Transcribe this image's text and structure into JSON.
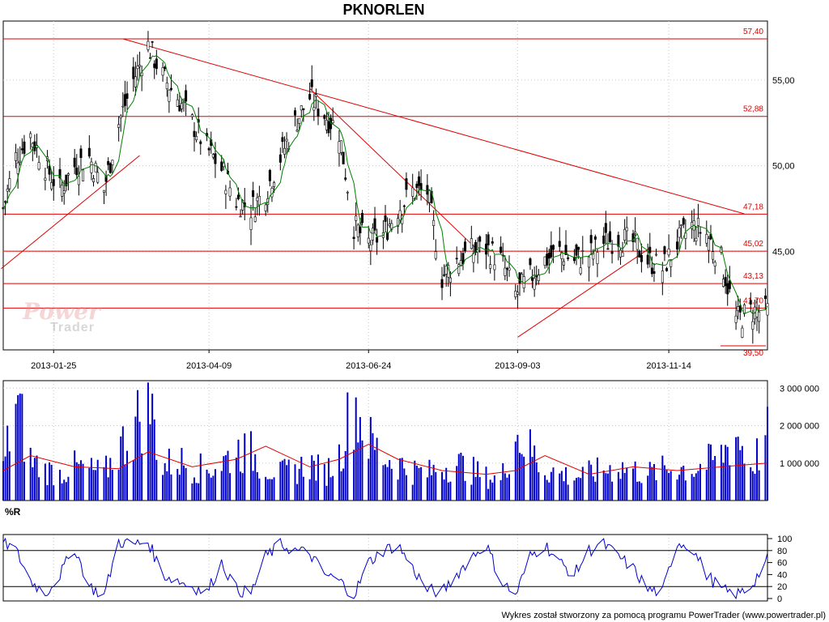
{
  "title": "PKNORLEN",
  "watermark": {
    "brand_top": "Power",
    "brand_bottom": "Trader"
  },
  "footer": "Wykres został stworzony za pomocą programu PowerTrader (www.powertrader.pl)",
  "colors": {
    "candle": "#000000",
    "sma": "#008000",
    "support_resistance": "#e00000",
    "volume_bar": "#0000cc",
    "volume_avg": "#e00000",
    "williams_r": "#0000cc",
    "grid": "#c8c8c8"
  },
  "chart_data": [
    {
      "type": "candlestick",
      "title": "PKNORLEN",
      "x_tick_labels": [
        "2013-01-25",
        "2013-04-09",
        "2013-06-24",
        "2013-09-03",
        "2013-11-14"
      ],
      "y_tick_labels": [
        "45,00",
        "50,00",
        "55,00"
      ],
      "ylim": [
        39.5,
        57.4
      ],
      "grid": true,
      "level_labels": [
        "57,40",
        "52,88",
        "47,18",
        "45,02",
        "43,13",
        "41,70",
        "39,50"
      ],
      "levels": [
        57.4,
        52.88,
        47.18,
        45.02,
        43.13,
        41.7,
        39.5
      ],
      "trendlines": [
        {
          "points": [
            [
              "2012-12-31",
              44.0
            ],
            [
              "2013-03-07",
              50.6
            ]
          ]
        },
        {
          "points": [
            [
              "2013-02-27",
              57.4
            ],
            [
              "2013-12-20",
              47.2
            ]
          ]
        },
        {
          "points": [
            [
              "2013-05-27",
              54.5
            ],
            [
              "2013-08-14",
              45.2
            ]
          ]
        },
        {
          "points": [
            [
              "2013-09-03",
              40.0
            ],
            [
              "2013-11-05",
              45.2
            ]
          ]
        }
      ],
      "price_path": [
        [
          "2013-01-01",
          47.5
        ],
        [
          "2013-01-07",
          50.5
        ],
        [
          "2013-01-14",
          51.8
        ],
        [
          "2013-01-21",
          50.0
        ],
        [
          "2013-01-28",
          48.6
        ],
        [
          "2013-02-04",
          50.0
        ],
        [
          "2013-02-11",
          50.5
        ],
        [
          "2013-02-18",
          48.6
        ],
        [
          "2013-02-25",
          52.5
        ],
        [
          "2013-03-04",
          55.0
        ],
        [
          "2013-03-11",
          57.0
        ],
        [
          "2013-03-18",
          55.2
        ],
        [
          "2013-03-25",
          54.0
        ],
        [
          "2013-04-01",
          52.5
        ],
        [
          "2013-04-08",
          51.0
        ],
        [
          "2013-04-15",
          49.8
        ],
        [
          "2013-04-22",
          48.0
        ],
        [
          "2013-04-29",
          47.5
        ],
        [
          "2013-05-06",
          48.5
        ],
        [
          "2013-05-13",
          50.5
        ],
        [
          "2013-05-20",
          52.5
        ],
        [
          "2013-05-27",
          54.0
        ],
        [
          "2013-06-03",
          53.0
        ],
        [
          "2013-06-10",
          52.0
        ],
        [
          "2013-06-17",
          46.5
        ],
        [
          "2013-06-24",
          45.5
        ],
        [
          "2013-07-01",
          46.0
        ],
        [
          "2013-07-08",
          47.5
        ],
        [
          "2013-07-15",
          48.5
        ],
        [
          "2013-07-22",
          48.5
        ],
        [
          "2013-07-29",
          43.5
        ],
        [
          "2013-08-05",
          44.5
        ],
        [
          "2013-08-12",
          45.0
        ],
        [
          "2013-08-19",
          45.2
        ],
        [
          "2013-08-26",
          44.5
        ],
        [
          "2013-09-02",
          42.5
        ],
        [
          "2013-09-09",
          43.5
        ],
        [
          "2013-09-16",
          44.5
        ],
        [
          "2013-09-23",
          45.0
        ],
        [
          "2013-09-30",
          44.5
        ],
        [
          "2013-10-07",
          44.8
        ],
        [
          "2013-10-14",
          45.5
        ],
        [
          "2013-10-21",
          45.8
        ],
        [
          "2013-10-28",
          45.5
        ],
        [
          "2013-11-04",
          44.5
        ],
        [
          "2013-11-11",
          44.0
        ],
        [
          "2013-11-18",
          45.5
        ],
        [
          "2013-11-25",
          46.5
        ],
        [
          "2013-12-02",
          46.0
        ],
        [
          "2013-12-09",
          44.5
        ],
        [
          "2013-12-16",
          41.0
        ],
        [
          "2013-12-23",
          41.5
        ],
        [
          "2013-12-31",
          41.5
        ]
      ]
    },
    {
      "type": "bar",
      "y_tick_labels": [
        "1 000 000",
        "2 000 000",
        "3 000 000"
      ],
      "ylim": [
        0,
        3200000
      ],
      "volume_path": [
        [
          "2013-01-01",
          900000
        ],
        [
          "2013-01-07",
          3000000
        ],
        [
          "2013-01-14",
          1200000
        ],
        [
          "2013-01-21",
          900000
        ],
        [
          "2013-01-28",
          800000
        ],
        [
          "2013-02-04",
          1000000
        ],
        [
          "2013-02-11",
          900000
        ],
        [
          "2013-02-18",
          800000
        ],
        [
          "2013-02-25",
          1500000
        ],
        [
          "2013-03-04",
          2100000
        ],
        [
          "2013-03-11",
          3100000
        ],
        [
          "2013-03-18",
          1000000
        ],
        [
          "2013-03-25",
          1200000
        ],
        [
          "2013-04-01",
          1000000
        ],
        [
          "2013-04-08",
          900000
        ],
        [
          "2013-04-15",
          1100000
        ],
        [
          "2013-04-22",
          1500000
        ],
        [
          "2013-04-29",
          1400000
        ],
        [
          "2013-05-06",
          1000000
        ],
        [
          "2013-05-13",
          800000
        ],
        [
          "2013-05-20",
          900000
        ],
        [
          "2013-05-27",
          1100000
        ],
        [
          "2013-06-03",
          800000
        ],
        [
          "2013-06-10",
          1300000
        ],
        [
          "2013-06-17",
          3000000
        ],
        [
          "2013-06-24",
          1800000
        ],
        [
          "2013-07-01",
          1300000
        ],
        [
          "2013-07-08",
          1100000
        ],
        [
          "2013-07-15",
          900000
        ],
        [
          "2013-07-22",
          800000
        ],
        [
          "2013-07-29",
          1000000
        ],
        [
          "2013-08-05",
          1100000
        ],
        [
          "2013-08-12",
          900000
        ],
        [
          "2013-08-19",
          700000
        ],
        [
          "2013-08-26",
          600000
        ],
        [
          "2013-09-02",
          2000000
        ],
        [
          "2013-09-09",
          1500000
        ],
        [
          "2013-09-16",
          900000
        ],
        [
          "2013-09-23",
          800000
        ],
        [
          "2013-09-30",
          700000
        ],
        [
          "2013-10-07",
          800000
        ],
        [
          "2013-10-14",
          900000
        ],
        [
          "2013-10-21",
          1000000
        ],
        [
          "2013-10-28",
          900000
        ],
        [
          "2013-11-04",
          800000
        ],
        [
          "2013-11-11",
          900000
        ],
        [
          "2013-11-18",
          1000000
        ],
        [
          "2013-11-25",
          900000
        ],
        [
          "2013-12-02",
          1100000
        ],
        [
          "2013-12-09",
          1300000
        ],
        [
          "2013-12-16",
          2000000
        ],
        [
          "2013-12-23",
          1000000
        ],
        [
          "2013-12-31",
          1900000
        ]
      ],
      "average_path": [
        [
          "2013-01-01",
          800000
        ],
        [
          "2013-01-14",
          1200000
        ],
        [
          "2013-02-04",
          900000
        ],
        [
          "2013-02-25",
          850000
        ],
        [
          "2013-03-11",
          1300000
        ],
        [
          "2013-04-01",
          900000
        ],
        [
          "2013-04-22",
          1100000
        ],
        [
          "2013-05-06",
          1450000
        ],
        [
          "2013-05-27",
          900000
        ],
        [
          "2013-06-10",
          1100000
        ],
        [
          "2013-06-24",
          1500000
        ],
        [
          "2013-07-08",
          1100000
        ],
        [
          "2013-07-29",
          800000
        ],
        [
          "2013-08-19",
          700000
        ],
        [
          "2013-09-02",
          800000
        ],
        [
          "2013-09-16",
          1200000
        ],
        [
          "2013-10-07",
          700000
        ],
        [
          "2013-10-28",
          900000
        ],
        [
          "2013-11-18",
          800000
        ],
        [
          "2013-12-09",
          900000
        ],
        [
          "2013-12-31",
          1000000
        ]
      ]
    },
    {
      "type": "line",
      "title": "%R",
      "y_tick_labels": [
        "0",
        "20",
        "40",
        "60",
        "80",
        "100"
      ],
      "ylim": [
        0,
        100
      ],
      "reference_lines": [
        20,
        80
      ],
      "williams_r_path": [
        [
          "2013-01-01",
          95
        ],
        [
          "2013-01-07",
          80
        ],
        [
          "2013-01-14",
          30
        ],
        [
          "2013-01-21",
          8
        ],
        [
          "2013-01-28",
          40
        ],
        [
          "2013-02-04",
          85
        ],
        [
          "2013-02-11",
          20
        ],
        [
          "2013-02-18",
          5
        ],
        [
          "2013-02-25",
          95
        ],
        [
          "2013-03-04",
          90
        ],
        [
          "2013-03-11",
          95
        ],
        [
          "2013-03-18",
          40
        ],
        [
          "2013-03-25",
          30
        ],
        [
          "2013-04-01",
          20
        ],
        [
          "2013-04-08",
          10
        ],
        [
          "2013-04-15",
          60
        ],
        [
          "2013-04-22",
          15
        ],
        [
          "2013-04-29",
          8
        ],
        [
          "2013-05-06",
          70
        ],
        [
          "2013-05-13",
          90
        ],
        [
          "2013-05-20",
          80
        ],
        [
          "2013-05-27",
          75
        ],
        [
          "2013-06-03",
          40
        ],
        [
          "2013-06-10",
          30
        ],
        [
          "2013-06-17",
          5
        ],
        [
          "2013-06-24",
          60
        ],
        [
          "2013-07-01",
          80
        ],
        [
          "2013-07-08",
          90
        ],
        [
          "2013-07-15",
          50
        ],
        [
          "2013-07-22",
          15
        ],
        [
          "2013-07-29",
          10
        ],
        [
          "2013-08-05",
          40
        ],
        [
          "2013-08-12",
          70
        ],
        [
          "2013-08-19",
          90
        ],
        [
          "2013-08-26",
          30
        ],
        [
          "2013-09-02",
          5
        ],
        [
          "2013-09-09",
          70
        ],
        [
          "2013-09-16",
          90
        ],
        [
          "2013-09-23",
          60
        ],
        [
          "2013-09-30",
          40
        ],
        [
          "2013-10-07",
          80
        ],
        [
          "2013-10-14",
          90
        ],
        [
          "2013-10-21",
          70
        ],
        [
          "2013-10-28",
          50
        ],
        [
          "2013-11-04",
          15
        ],
        [
          "2013-11-11",
          10
        ],
        [
          "2013-11-18",
          95
        ],
        [
          "2013-11-25",
          85
        ],
        [
          "2013-12-02",
          40
        ],
        [
          "2013-12-09",
          15
        ],
        [
          "2013-12-16",
          5
        ],
        [
          "2013-12-23",
          20
        ],
        [
          "2013-12-31",
          65
        ]
      ]
    }
  ]
}
